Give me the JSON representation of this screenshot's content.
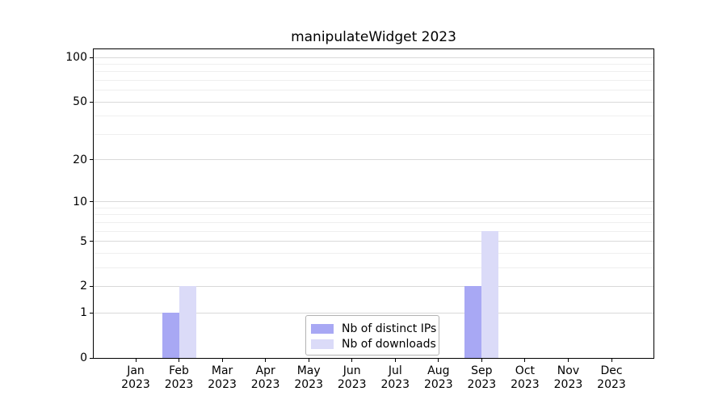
{
  "title": "manipulateWidget 2023",
  "chart_data": {
    "type": "bar",
    "title": "manipulateWidget 2023",
    "categories": [
      "Jan",
      "Feb",
      "Mar",
      "Apr",
      "May",
      "Jun",
      "Jul",
      "Aug",
      "Sep",
      "Oct",
      "Nov",
      "Dec"
    ],
    "category_year": "2023",
    "series": [
      {
        "name": "Nb of distinct IPs",
        "color": "#a8a8f4",
        "values": [
          0,
          1,
          0,
          0,
          0,
          0,
          0,
          0,
          2,
          0,
          0,
          0
        ]
      },
      {
        "name": "Nb of downloads",
        "color": "#dbdbf8",
        "values": [
          0,
          2,
          0,
          0,
          0,
          0,
          0,
          0,
          6,
          0,
          0,
          0
        ]
      }
    ],
    "y_axis": {
      "scale": "log1p",
      "ticks": [
        0,
        1,
        2,
        5,
        10,
        20,
        50,
        100
      ],
      "minor_ticks": [
        3,
        4,
        6,
        7,
        8,
        9,
        30,
        40,
        60,
        70,
        80,
        90
      ],
      "max": 113.5
    },
    "x_axis": {
      "label": "",
      "tick_year_line": "2023"
    },
    "legend": {
      "position": "lower center"
    },
    "grid": true,
    "colors": {
      "grid_major": "#d9d9d9",
      "grid_minor": "#efefef",
      "spine": "#000000",
      "legend_border": "#b3b3b3"
    }
  }
}
